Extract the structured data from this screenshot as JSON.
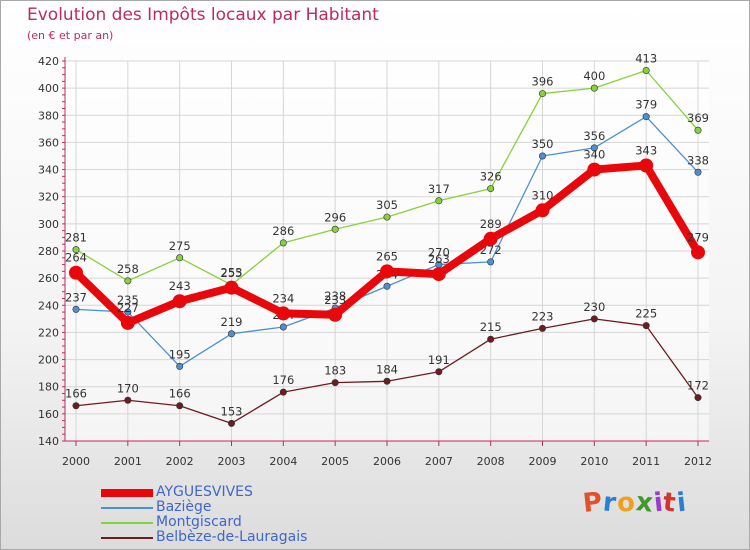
{
  "title": "Evolution des Impôts locaux par Habitant",
  "subtitle": "(en € et par an)",
  "brand": "Proxiti",
  "colors": {
    "title": "#bd2a63",
    "axis": "#bd2a63",
    "grid": "#d6d6d6",
    "legend_text": "#3f66cc"
  },
  "chart_data": {
    "type": "line",
    "x": [
      2000,
      2001,
      2002,
      2003,
      2004,
      2005,
      2006,
      2007,
      2008,
      2009,
      2010,
      2011,
      2012
    ],
    "ylim": [
      140,
      420
    ],
    "yticks": [
      140,
      160,
      180,
      200,
      220,
      240,
      260,
      280,
      300,
      320,
      340,
      360,
      380,
      400,
      420
    ],
    "grid": true,
    "legend_position": "bottom-left",
    "series": [
      {
        "name": "AYGUESVIVES",
        "color": "#e8080b",
        "values": [
          264,
          227,
          243,
          253,
          234,
          233,
          265,
          263,
          289,
          310,
          340,
          343,
          279
        ]
      },
      {
        "name": "Baziège",
        "color": "#4e8fd0",
        "values": [
          237,
          235,
          195,
          219,
          224,
          238,
          254,
          270,
          272,
          350,
          356,
          379,
          338
        ]
      },
      {
        "name": "Montgiscard",
        "color": "#86d13c",
        "values": [
          281,
          258,
          275,
          255,
          286,
          296,
          305,
          317,
          326,
          396,
          400,
          413,
          369
        ]
      },
      {
        "name": "Belbèze-de-Lauragais",
        "color": "#6e1c22",
        "values": [
          166,
          170,
          166,
          153,
          176,
          183,
          184,
          191,
          215,
          223,
          230,
          225,
          172
        ]
      }
    ]
  }
}
